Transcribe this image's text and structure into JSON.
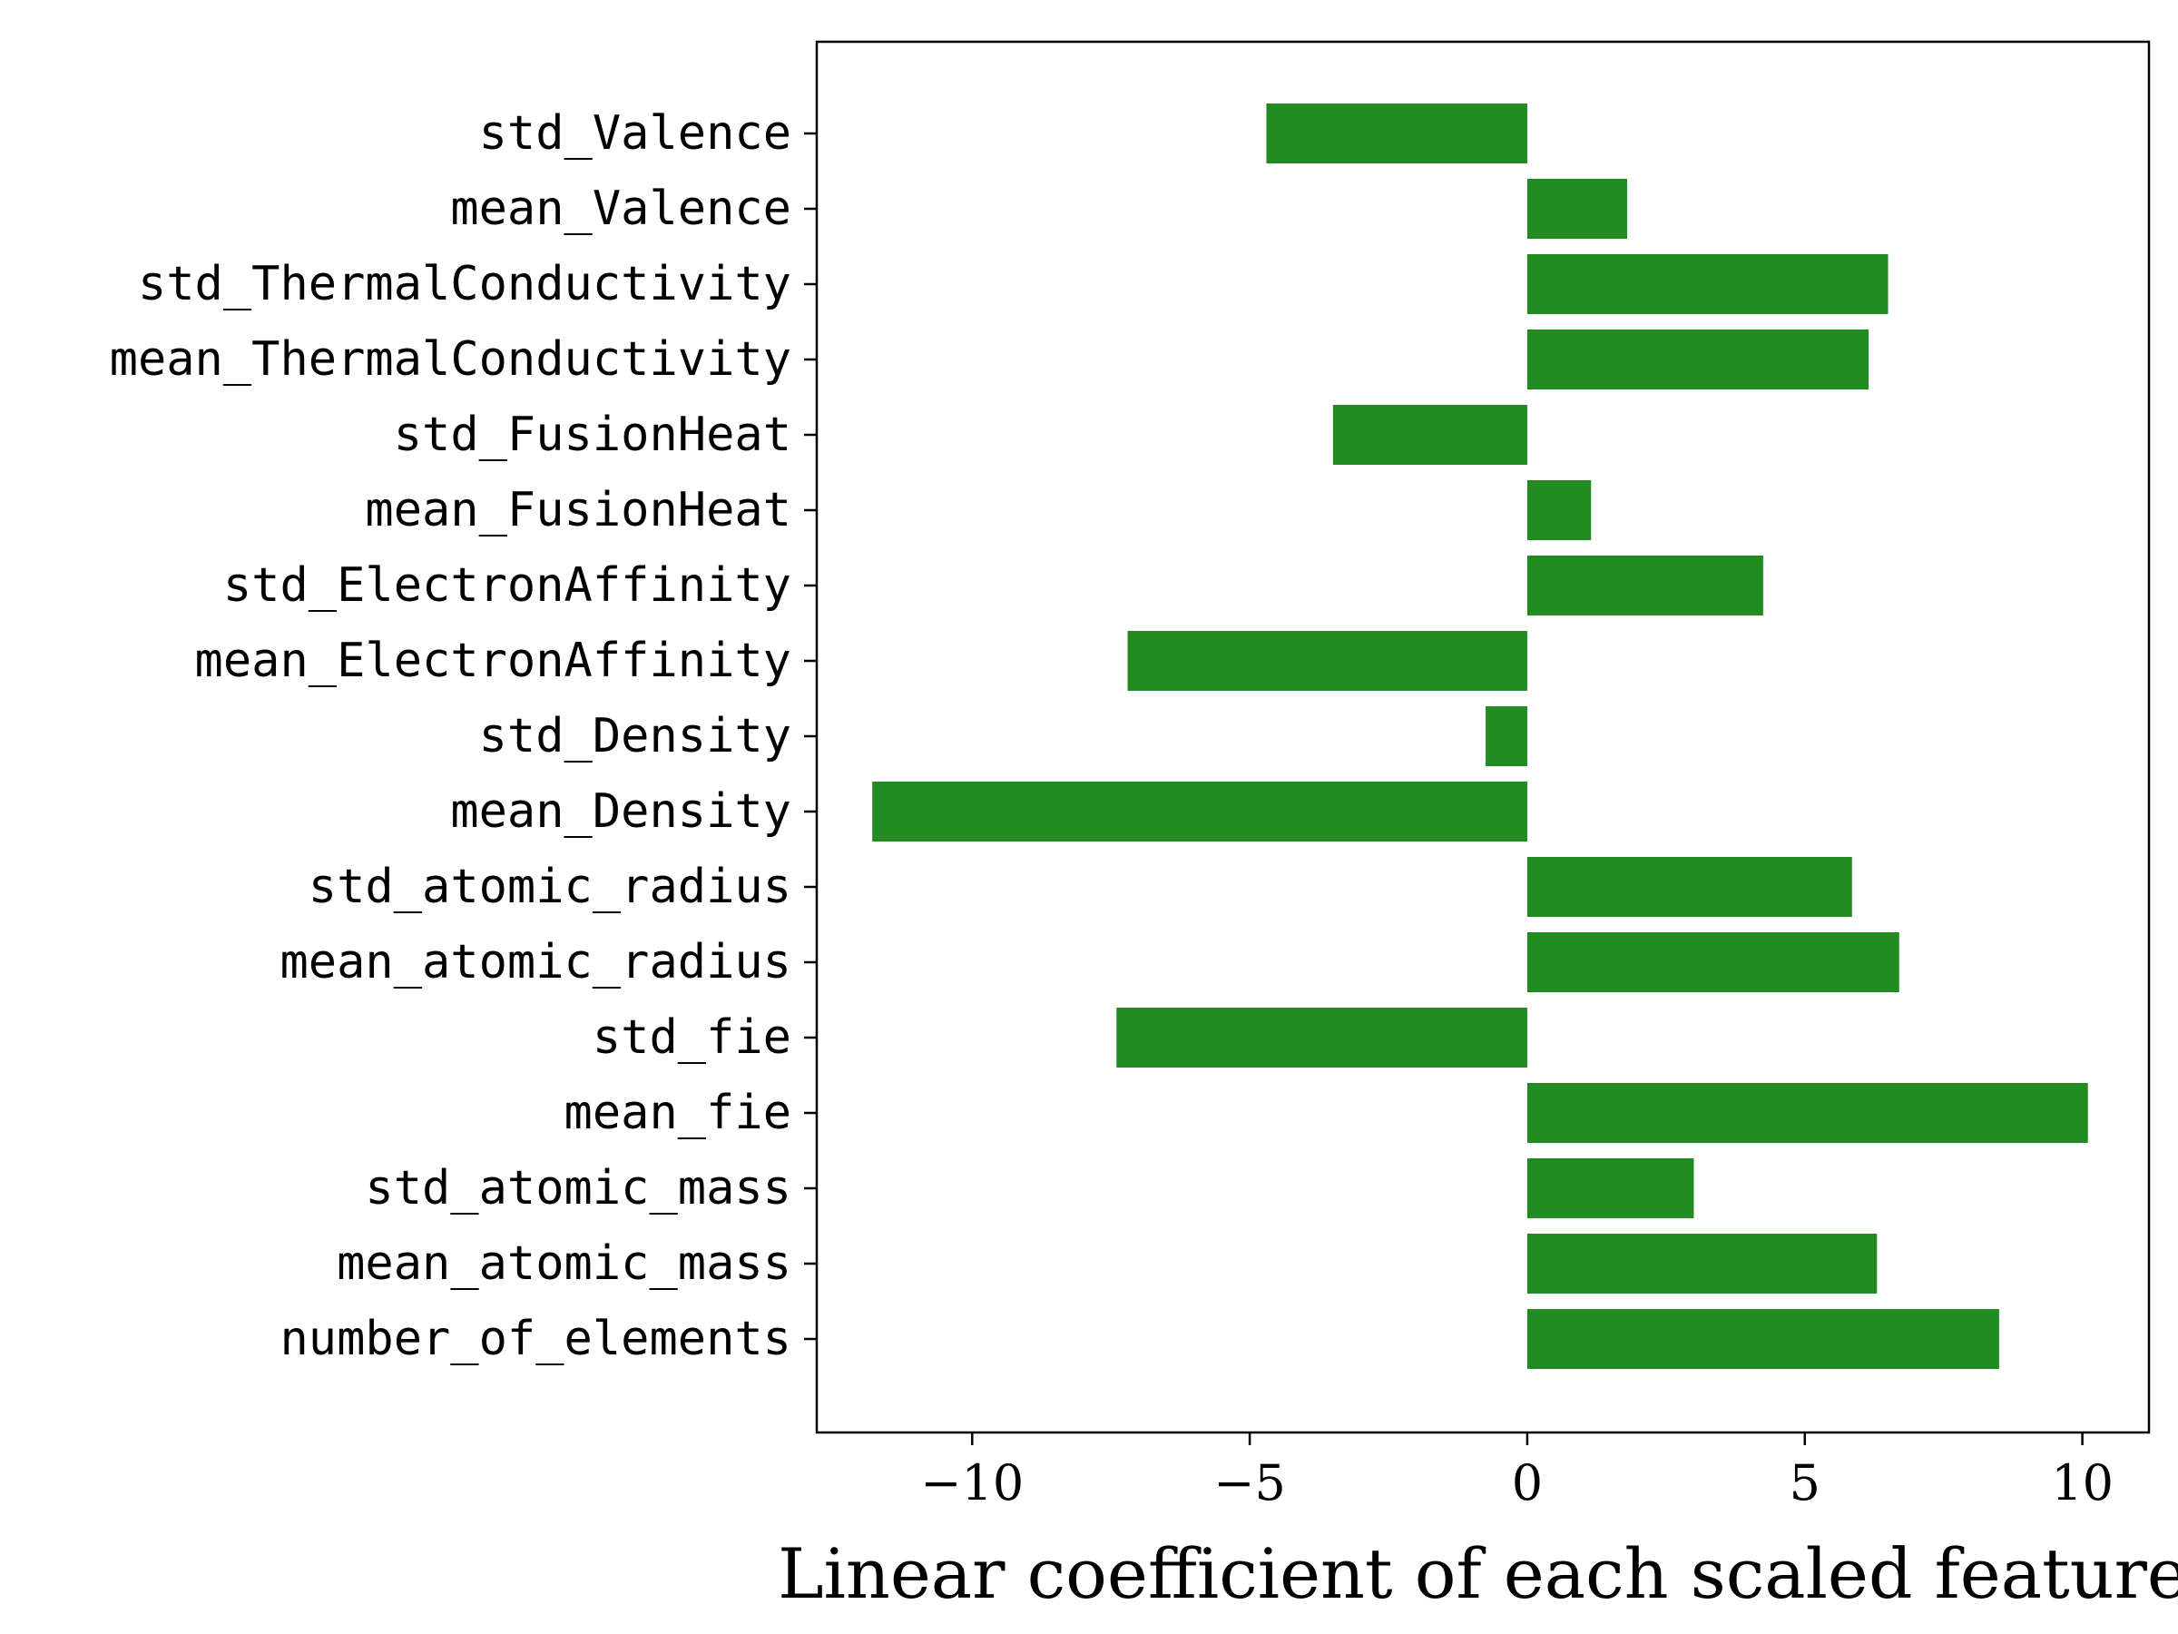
{
  "chart_data": {
    "type": "bar",
    "orientation": "horizontal",
    "title": "",
    "xlabel": "Linear coefficient of each scaled feature",
    "ylabel": "",
    "xlim": [
      -12.8,
      11.2
    ],
    "xticks": [
      -10,
      -5,
      0,
      5,
      10
    ],
    "xtick_labels": [
      "−10",
      "−5",
      "0",
      "5",
      "10"
    ],
    "grid": false,
    "legend": "none",
    "bar_color": "#228b22",
    "categories": [
      "number_of_elements",
      "mean_atomic_mass",
      "std_atomic_mass",
      "mean_fie",
      "std_fie",
      "mean_atomic_radius",
      "std_atomic_radius",
      "mean_Density",
      "std_Density",
      "mean_ElectronAffinity",
      "std_ElectronAffinity",
      "mean_FusionHeat",
      "std_FusionHeat",
      "mean_ThermalConductivity",
      "std_ThermalConductivity",
      "mean_Valence",
      "std_Valence"
    ],
    "values": [
      8.5,
      6.3,
      3.0,
      10.1,
      -7.4,
      6.7,
      5.85,
      -11.8,
      -0.75,
      -7.2,
      4.25,
      1.15,
      -3.5,
      6.15,
      6.5,
      1.8,
      -4.7
    ]
  }
}
